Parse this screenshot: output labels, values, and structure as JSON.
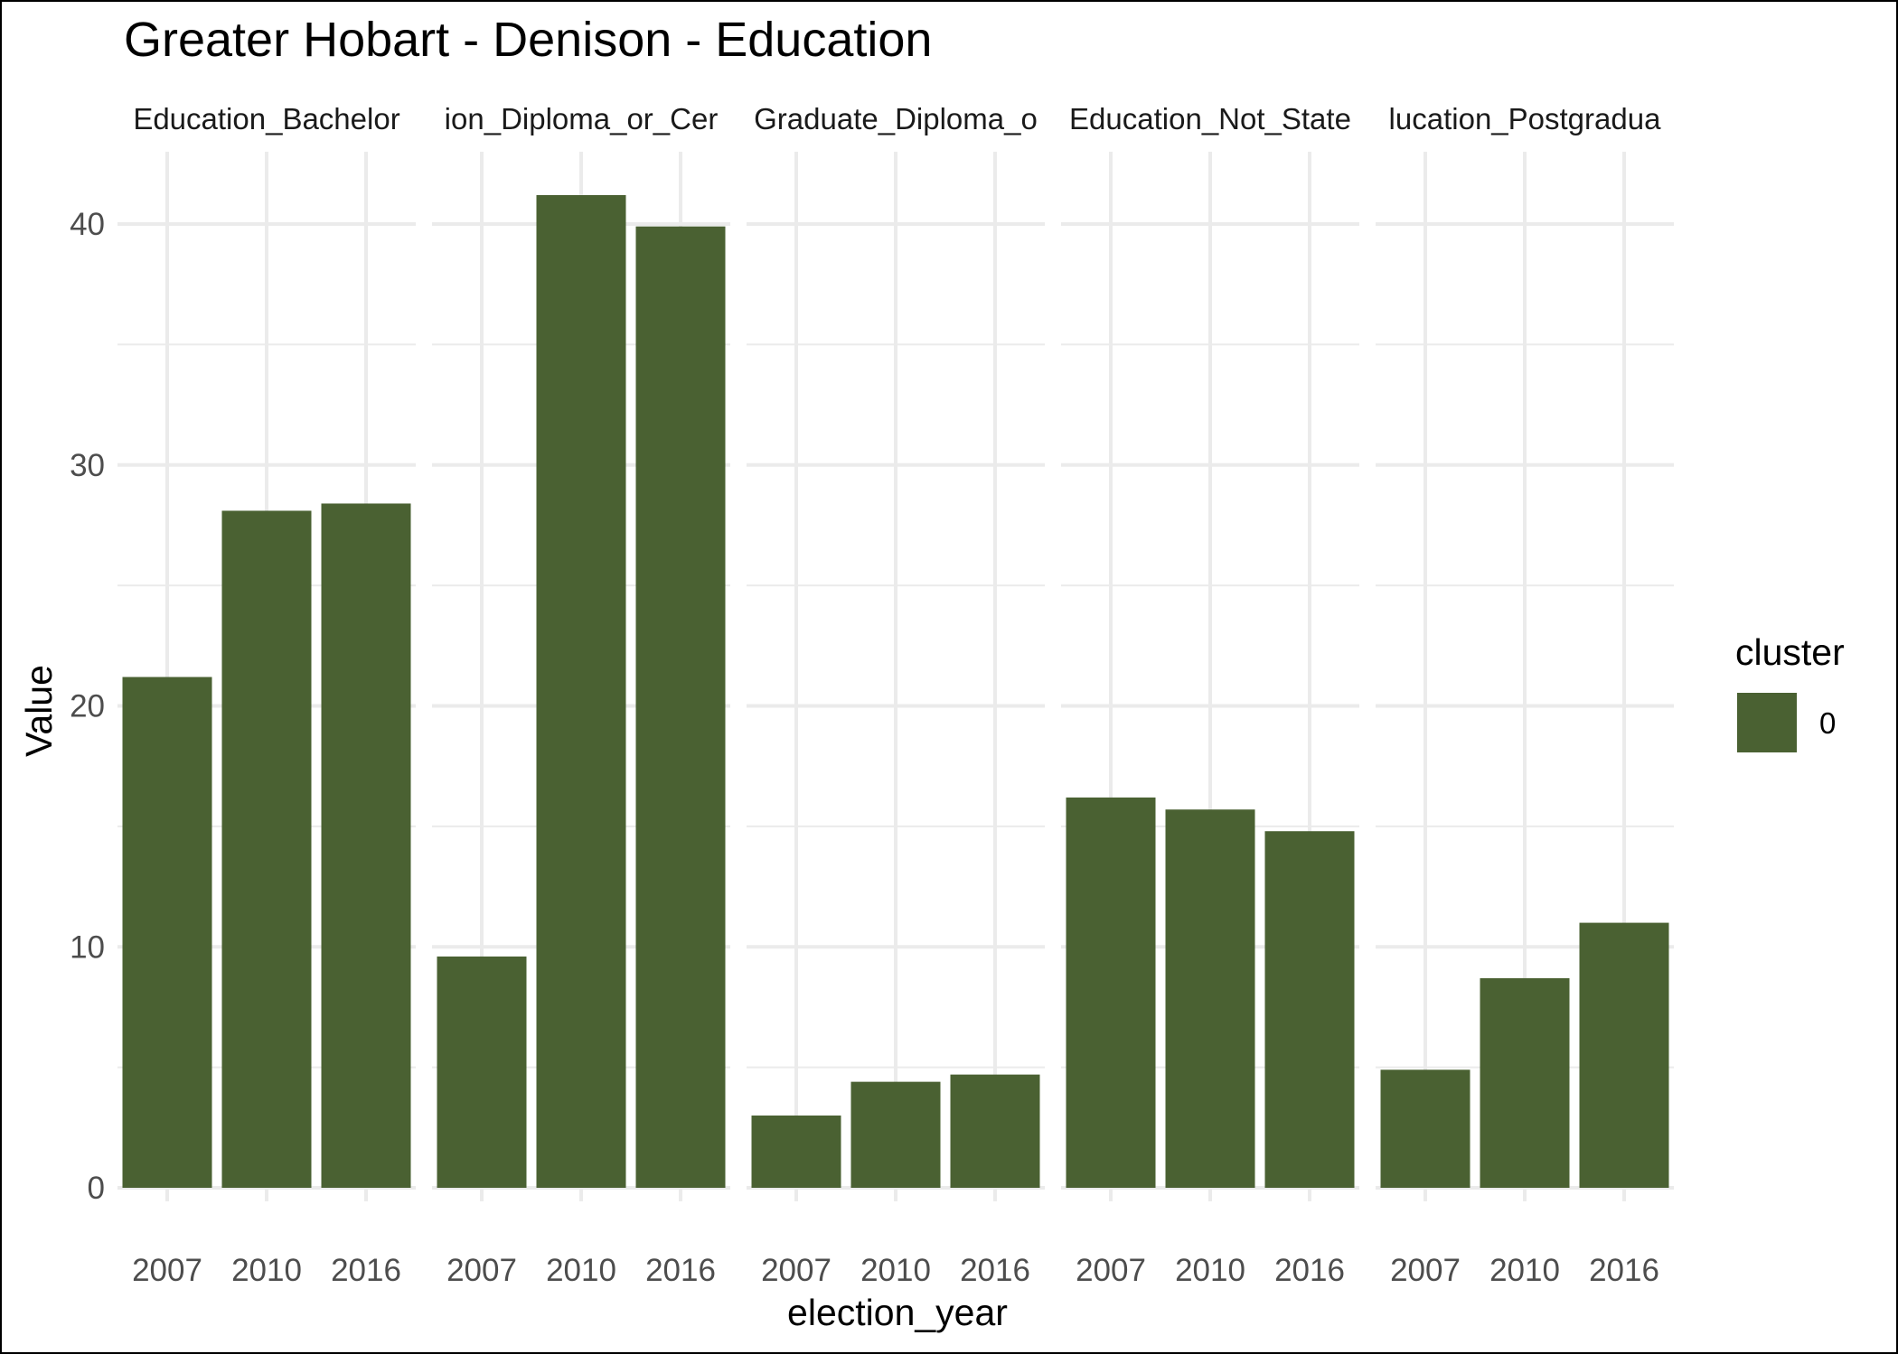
{
  "chart_data": {
    "type": "bar",
    "title": "Greater Hobart - Denison - Education",
    "xlabel": "election_year",
    "ylabel": "Value",
    "categories": [
      "2007",
      "2010",
      "2016"
    ],
    "ylim": [
      0,
      43
    ],
    "y_ticks": [
      0,
      10,
      20,
      30,
      40
    ],
    "grid": true,
    "facets": [
      {
        "label": "Education_Bachelor",
        "values": [
          21.2,
          28.1,
          28.4
        ]
      },
      {
        "label": "ion_Diploma_or_Cer",
        "values": [
          9.6,
          41.2,
          39.9
        ]
      },
      {
        "label": "Graduate_Diploma_o",
        "values": [
          3.0,
          4.4,
          4.7
        ]
      },
      {
        "label": "Education_Not_State",
        "values": [
          16.2,
          15.7,
          14.8
        ]
      },
      {
        "label": "lucation_Postgradua",
        "values": [
          4.9,
          8.7,
          11.0
        ]
      }
    ],
    "legend": {
      "title": "cluster",
      "position": "right",
      "items": [
        {
          "label": "0",
          "color": "#4a6132"
        }
      ]
    },
    "colors": {
      "bar": "#4a6132",
      "grid": "#ebebeb"
    }
  }
}
